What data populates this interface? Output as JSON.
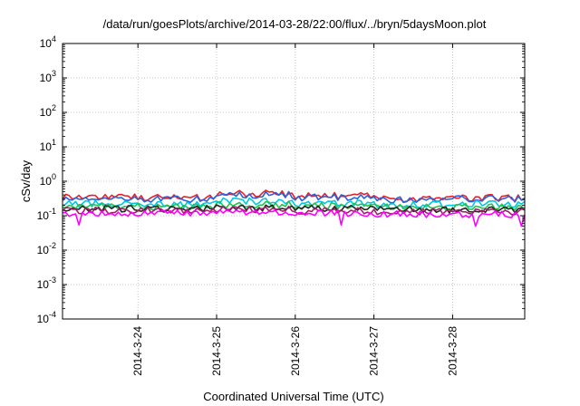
{
  "chart_data": {
    "type": "line",
    "title": "/data/run/goesPlots/archive/2014-03-28/22:00/flux/../bryn/5daysMoon.plot",
    "xlabel": "Coordinated Universal Time (UTC)",
    "ylabel": "cSv/day",
    "y_scale": "log",
    "ylim": [
      0.0001,
      10000
    ],
    "y_ticks": [
      {
        "base": "10",
        "exp": "4"
      },
      {
        "base": "10",
        "exp": "3"
      },
      {
        "base": "10",
        "exp": "2"
      },
      {
        "base": "10",
        "exp": "1"
      },
      {
        "base": "10",
        "exp": "0"
      },
      {
        "base": "10",
        "exp": "-1"
      },
      {
        "base": "10",
        "exp": "-2"
      },
      {
        "base": "10",
        "exp": "-3"
      },
      {
        "base": "10",
        "exp": "-4"
      }
    ],
    "xlim": [
      "2014-03-23 01:00",
      "2014-03-28 22:00"
    ],
    "x_ticks": [
      "2014-3-24",
      "2014-3-25",
      "2014-3-26",
      "2014-3-27",
      "2014-3-28"
    ],
    "grid": true,
    "series": [
      {
        "color": "#e8202a",
        "typical_value": 0.34,
        "values_by_day": [
          0.36,
          0.33,
          0.44,
          0.38,
          0.31,
          0.33
        ]
      },
      {
        "color": "#2962d9",
        "typical_value": 0.31,
        "values_by_day": [
          0.32,
          0.3,
          0.4,
          0.34,
          0.29,
          0.31
        ]
      },
      {
        "color": "#00c8e0",
        "typical_value": 0.22,
        "values_by_day": [
          0.22,
          0.21,
          0.26,
          0.23,
          0.21,
          0.22
        ]
      },
      {
        "color": "#22c24b",
        "typical_value": 0.19,
        "values_by_day": [
          0.19,
          0.18,
          0.21,
          0.19,
          0.18,
          0.18
        ]
      },
      {
        "color": "#222222",
        "typical_value": 0.16,
        "values_by_day": [
          0.16,
          0.16,
          0.17,
          0.16,
          0.15,
          0.15
        ]
      },
      {
        "color": "#a0206b",
        "typical_value": 0.14,
        "values_by_day": [
          0.14,
          0.14,
          0.15,
          0.14,
          0.13,
          0.13
        ]
      },
      {
        "color": "#ff00ff",
        "typical_value": 0.12,
        "values_by_day": [
          0.12,
          0.12,
          0.13,
          0.12,
          0.11,
          0.11
        ]
      }
    ]
  }
}
